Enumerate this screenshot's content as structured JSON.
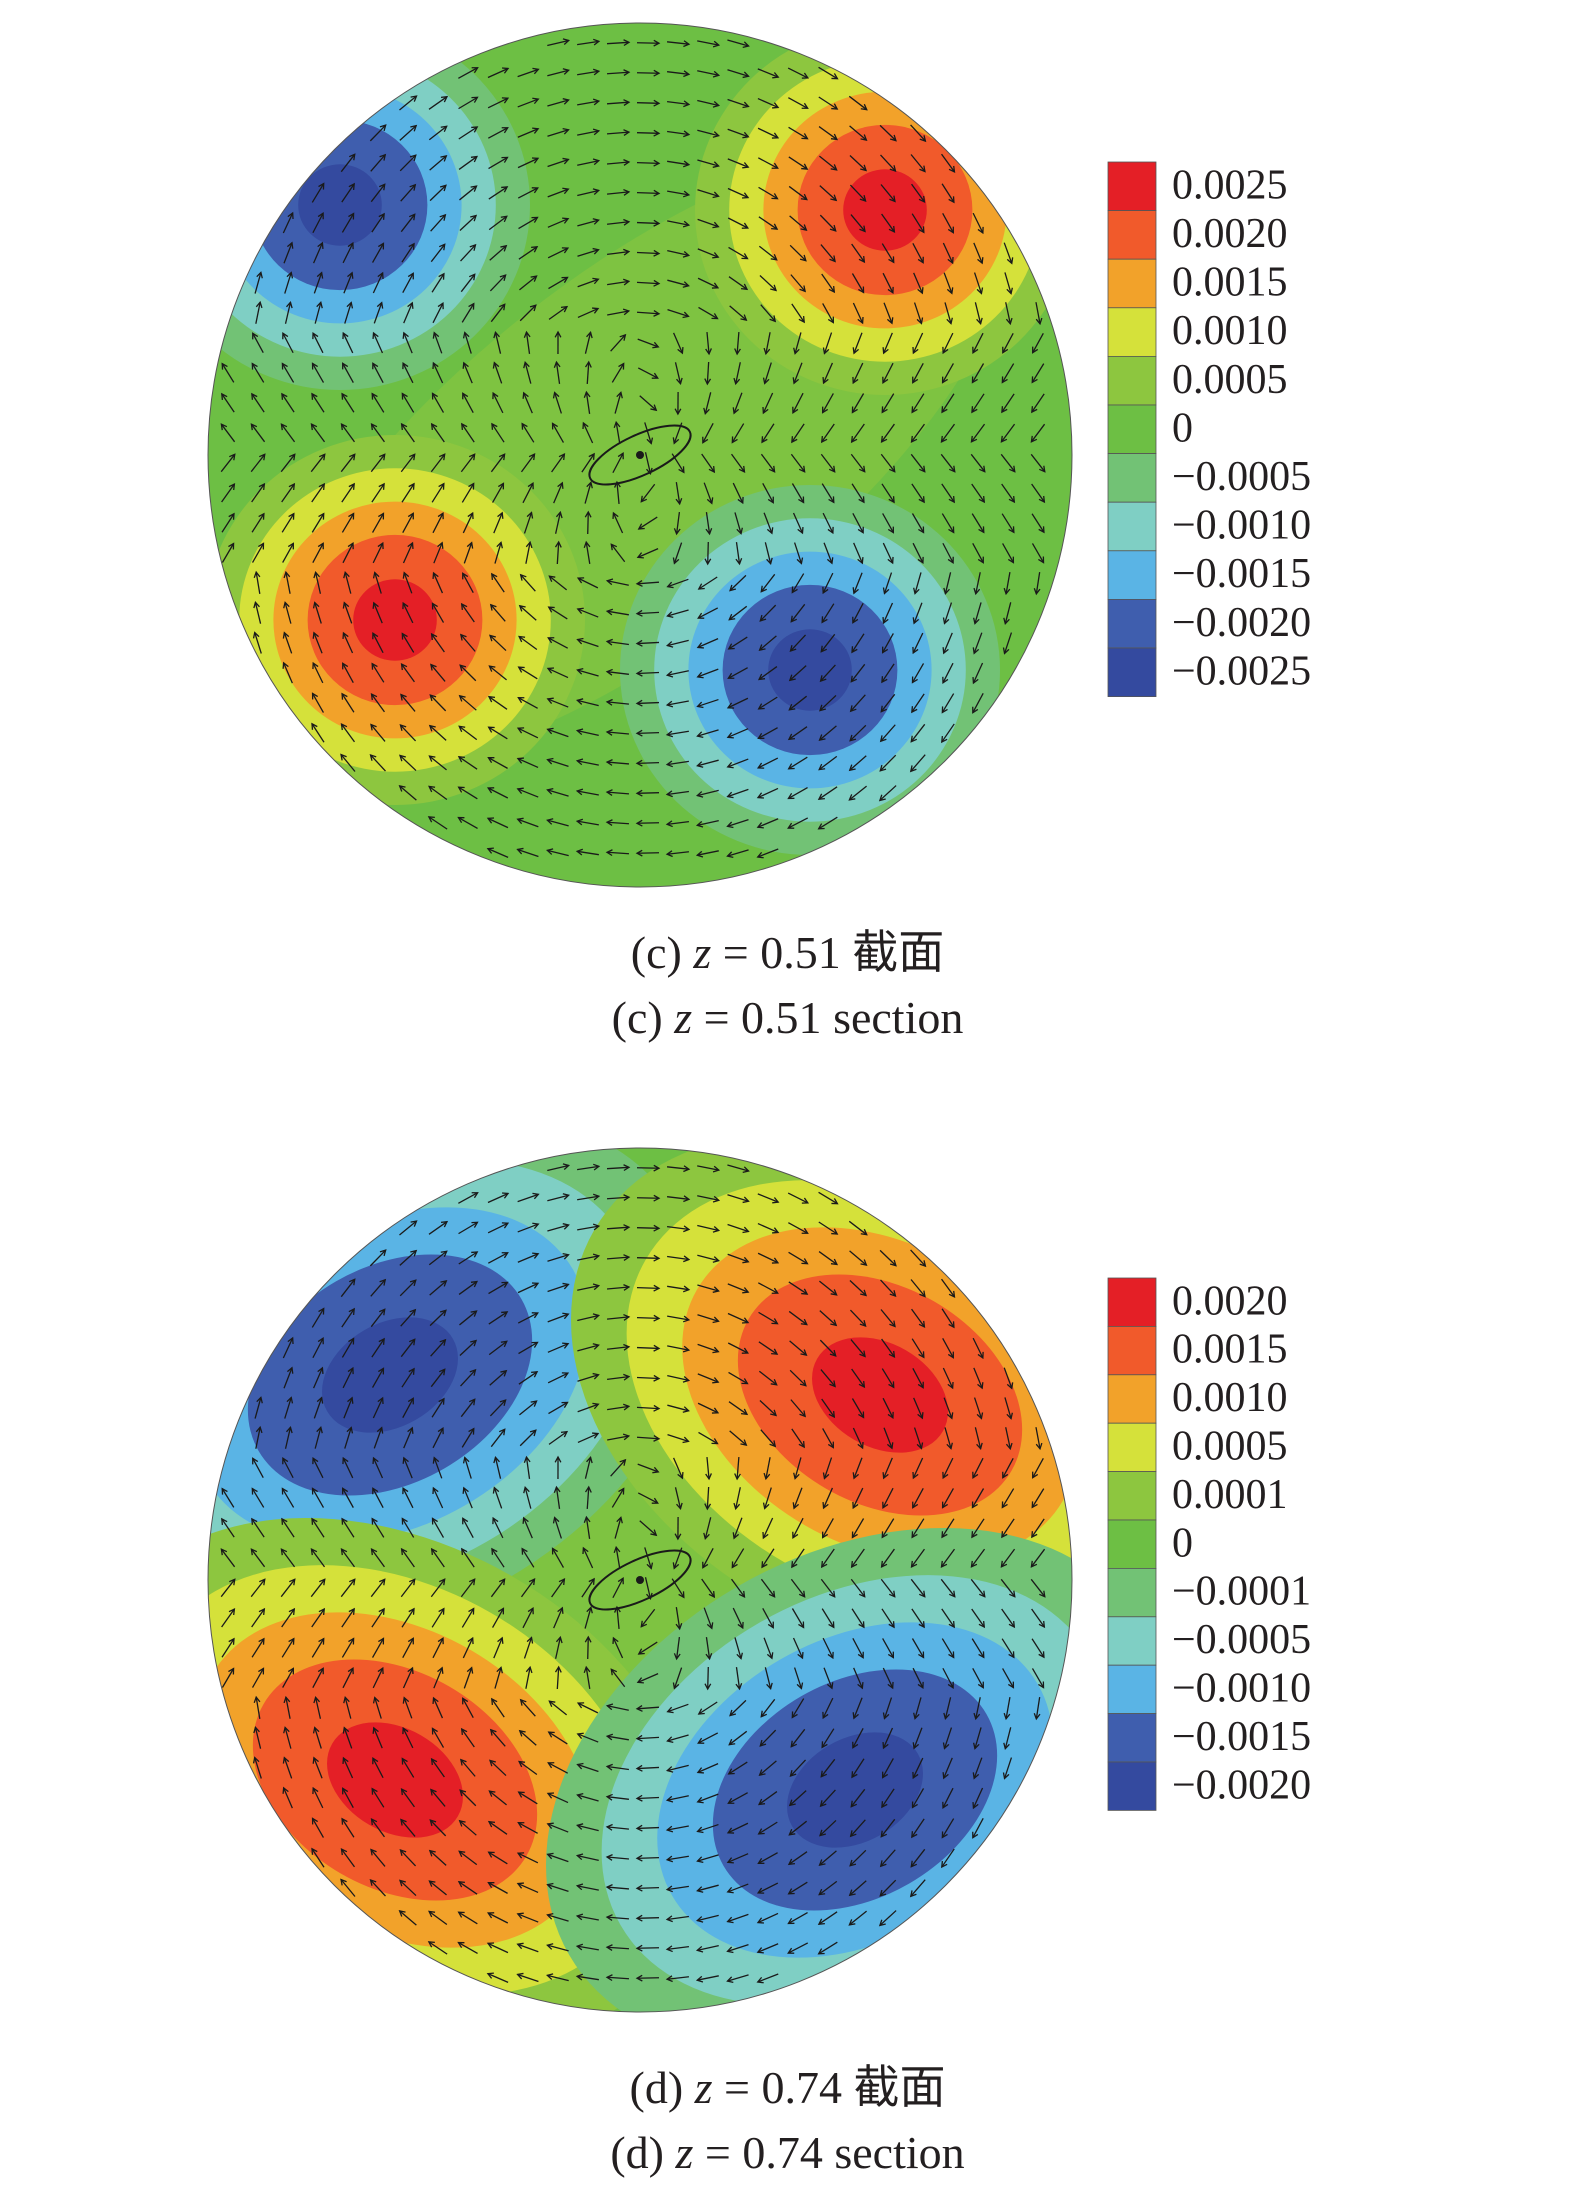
{
  "chart_data": [
    {
      "type": "heatmap",
      "caption_cn": "(c) z = 0.51 截面",
      "caption_en": "(c) z = 0.51 section",
      "caption_parts": {
        "prefix": "(c) ",
        "var": "z",
        "value": " = 0.51 ",
        "cn_suffix": "截面",
        "en_suffix": "section"
      },
      "legend": {
        "labels": [
          "0.0025",
          "0.0020",
          "0.0015",
          "0.0010",
          "0.0005",
          "0",
          "−0.0005",
          "−0.0010",
          "−0.0015",
          "−0.0020",
          "−0.0025"
        ],
        "colors": [
          "#e41f26",
          "#f15a2b",
          "#f2a22a",
          "#d5e13a",
          "#8dc63f",
          "#6dbf44",
          "#72c275",
          "#7fcfc4",
          "#5ab4e5",
          "#3f5eae",
          "#344a9f"
        ]
      },
      "vortices": [
        {
          "sign": "negative",
          "peak": -0.0025,
          "location": "upper-left"
        },
        {
          "sign": "positive",
          "peak": 0.0025,
          "location": "upper-right"
        },
        {
          "sign": "positive",
          "peak": 0.0025,
          "location": "lower-left"
        },
        {
          "sign": "negative",
          "peak": -0.0025,
          "location": "lower-right"
        }
      ],
      "overlay": "velocity vectors"
    },
    {
      "type": "heatmap",
      "caption_cn": "(d) z = 0.74 截面",
      "caption_en": "(d) z = 0.74 section",
      "caption_parts": {
        "prefix": "(d) ",
        "var": "z",
        "value": " = 0.74 ",
        "cn_suffix": "截面",
        "en_suffix": "section"
      },
      "legend": {
        "labels": [
          "0.0020",
          "0.0015",
          "0.0010",
          "0.0005",
          "0.0001",
          "0",
          "−0.0001",
          "−0.0005",
          "−0.0010",
          "−0.0015",
          "−0.0020"
        ],
        "colors": [
          "#e41f26",
          "#f15a2b",
          "#f2a22a",
          "#d5e13a",
          "#8dc63f",
          "#6dbf44",
          "#72c275",
          "#7fcfc4",
          "#5ab4e5",
          "#3f5eae",
          "#344a9f"
        ]
      },
      "vortices": [
        {
          "sign": "negative",
          "peak": -0.002,
          "location": "upper-left"
        },
        {
          "sign": "positive",
          "peak": 0.002,
          "location": "upper-right"
        },
        {
          "sign": "positive",
          "peak": 0.002,
          "location": "lower-left"
        },
        {
          "sign": "negative",
          "peak": -0.002,
          "location": "lower-right"
        }
      ],
      "overlay": "velocity vectors"
    }
  ]
}
